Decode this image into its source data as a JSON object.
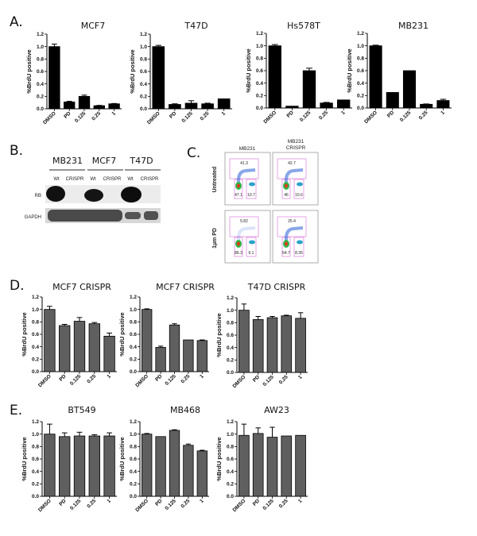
{
  "panels": {
    "A": "A.",
    "B": "B.",
    "C": "C.",
    "D": "D.",
    "E": "E."
  },
  "blot": {
    "cell_lines": [
      "MB231",
      "MCF7",
      "T47D"
    ],
    "lanes": [
      "Wt",
      "CRISPR",
      "Wt",
      "CRISPR",
      "Wt",
      "CRISPR"
    ],
    "rows": [
      "RB",
      "GAPDH"
    ]
  },
  "flow": {
    "columns": [
      "MB231",
      "MB231",
      "CRISPR"
    ],
    "rows": [
      "Untreated",
      "1µm PD"
    ],
    "gates": [
      [
        "41.3",
        "47.1",
        "10.7"
      ],
      [
        "42.7",
        "46",
        "10.6"
      ],
      [
        "5.82",
        "86.3",
        "6.1"
      ],
      [
        "25.4",
        "64.7",
        "8.35"
      ]
    ]
  },
  "colors": {
    "panelA": "#000000",
    "panelDE": "#5f5f5f",
    "gate": "#e08ee0"
  },
  "chart_data": [
    {
      "type": "bar",
      "panel": "A",
      "title": "MCF7",
      "categories": [
        "DMSO",
        "PD",
        "0.125",
        "0.25",
        "1"
      ],
      "values": [
        1.0,
        0.11,
        0.2,
        0.05,
        0.08
      ],
      "errors": [
        0.04,
        0.01,
        0.02,
        0.005,
        0.005
      ],
      "xlabel": "",
      "ylabel": "%BrdU positive",
      "ylim": [
        0,
        1.2
      ],
      "yticks": [
        "0.0",
        "0.2",
        "0.4",
        "0.6",
        "0.8",
        "1.0",
        "1.2"
      ]
    },
    {
      "type": "bar",
      "panel": "A",
      "title": "T47D",
      "categories": [
        "DMSO",
        "PD",
        "0.125",
        "0.25",
        "1"
      ],
      "values": [
        1.0,
        0.07,
        0.09,
        0.08,
        0.16
      ],
      "errors": [
        0.02,
        0.01,
        0.04,
        0.01,
        0
      ],
      "xlabel": "",
      "ylabel": "%BrdU positive",
      "ylim": [
        0,
        1.2
      ],
      "yticks": [
        "0.0",
        "0.2",
        "0.4",
        "0.6",
        "0.8",
        "1.0",
        "1.2"
      ]
    },
    {
      "type": "bar",
      "panel": "A",
      "title": "Hs578T",
      "categories": [
        "DMSO",
        "PD",
        "0.125",
        "0.25",
        "1"
      ],
      "values": [
        1.0,
        0.03,
        0.6,
        0.08,
        0.13
      ],
      "errors": [
        0.02,
        0,
        0.04,
        0.01,
        0
      ],
      "xlabel": "",
      "ylabel": "%BrdU positive",
      "ylim": [
        0,
        1.2
      ],
      "yticks": [
        "0.0",
        "0.2",
        "0.4",
        "0.6",
        "0.8",
        "1.0",
        "1.2"
      ]
    },
    {
      "type": "bar",
      "panel": "A",
      "title": "MB231",
      "categories": [
        "DMSO",
        "PD",
        "0.125",
        "0.25",
        "1"
      ],
      "values": [
        1.0,
        0.25,
        0.6,
        0.06,
        0.12
      ],
      "errors": [
        0.01,
        0,
        0,
        0.005,
        0.02
      ],
      "xlabel": "",
      "ylabel": "%BrdU positive",
      "ylim": [
        0,
        1.2
      ],
      "yticks": [
        "0.0",
        "0.2",
        "0.4",
        "0.6",
        "0.8",
        "1.0",
        "1.2"
      ]
    },
    {
      "type": "bar",
      "panel": "D",
      "title": "MCF7 CRISPR",
      "categories": [
        "DMSO",
        "PD",
        "0.125",
        "0.25",
        "1"
      ],
      "values": [
        1.0,
        0.74,
        0.81,
        0.77,
        0.57
      ],
      "errors": [
        0.05,
        0.02,
        0.06,
        0.02,
        0.05
      ],
      "xlabel": "",
      "ylabel": "%BrdU positive",
      "ylim": [
        0,
        1.2
      ],
      "yticks": [
        "0.0",
        "0.2",
        "0.4",
        "0.6",
        "0.8",
        "1.0",
        "1.2"
      ]
    },
    {
      "type": "bar",
      "panel": "D",
      "title": "MCF7 CRISPR",
      "categories": [
        "DMSO",
        "PD",
        "0.125",
        "0.25",
        "1"
      ],
      "values": [
        1.0,
        0.39,
        0.75,
        0.51,
        0.5
      ],
      "errors": [
        0.01,
        0.02,
        0.02,
        0,
        0.01
      ],
      "xlabel": "",
      "ylabel": "%BrdU positive",
      "ylim": [
        0,
        1.2
      ],
      "yticks": [
        "0.0",
        "0.2",
        "0.4",
        "0.6",
        "0.8",
        "1.0",
        "1.2"
      ]
    },
    {
      "type": "bar",
      "panel": "D",
      "title": "T47D CRISPR",
      "categories": [
        "DMSO",
        "PD",
        "0.125",
        "0.25",
        "1"
      ],
      "values": [
        1.0,
        0.85,
        0.88,
        0.91,
        0.87
      ],
      "errors": [
        0.1,
        0.05,
        0.02,
        0.01,
        0.09
      ],
      "xlabel": "",
      "ylabel": "%BrdU positive",
      "ylim": [
        0,
        1.2
      ],
      "yticks": [
        "0.0",
        "0.2",
        "0.4",
        "0.6",
        "0.8",
        "1.0",
        "1.2"
      ]
    },
    {
      "type": "bar",
      "panel": "E",
      "title": "BT549",
      "categories": [
        "DMSO",
        "PD",
        "0.125",
        "0.25",
        "1"
      ],
      "values": [
        1.0,
        0.96,
        0.97,
        0.97,
        0.97
      ],
      "errors": [
        0.16,
        0.06,
        0.06,
        0.02,
        0.05
      ],
      "xlabel": "",
      "ylabel": "%BrdU positive",
      "ylim": [
        0,
        1.2
      ],
      "yticks": [
        "0.0",
        "0.2",
        "0.4",
        "0.6",
        "0.8",
        "1.0",
        "1.2"
      ]
    },
    {
      "type": "bar",
      "panel": "E",
      "title": "MB468",
      "categories": [
        "DMSO",
        "PD",
        "0.125",
        "0.25",
        "1"
      ],
      "values": [
        1.0,
        0.96,
        1.06,
        0.82,
        0.73
      ],
      "errors": [
        0.01,
        0,
        0.01,
        0.02,
        0.01
      ],
      "xlabel": "",
      "ylabel": "%BrdU positive",
      "ylim": [
        0,
        1.2
      ],
      "yticks": [
        "0.0",
        "0.2",
        "0.4",
        "0.6",
        "0.8",
        "1.0",
        "1.2"
      ]
    },
    {
      "type": "bar",
      "panel": "E",
      "title": "AW23",
      "categories": [
        "DMSO",
        "PD",
        "0.125",
        "0.25",
        "1"
      ],
      "values": [
        0.98,
        1.01,
        0.95,
        0.97,
        0.98
      ],
      "errors": [
        0.18,
        0.09,
        0.16,
        0,
        0
      ],
      "xlabel": "",
      "ylabel": "%BrdU positive",
      "ylim": [
        0,
        1.2
      ],
      "yticks": [
        "0.0",
        "0.2",
        "0.4",
        "0.6",
        "0.8",
        "1.0",
        "1.2"
      ]
    }
  ]
}
